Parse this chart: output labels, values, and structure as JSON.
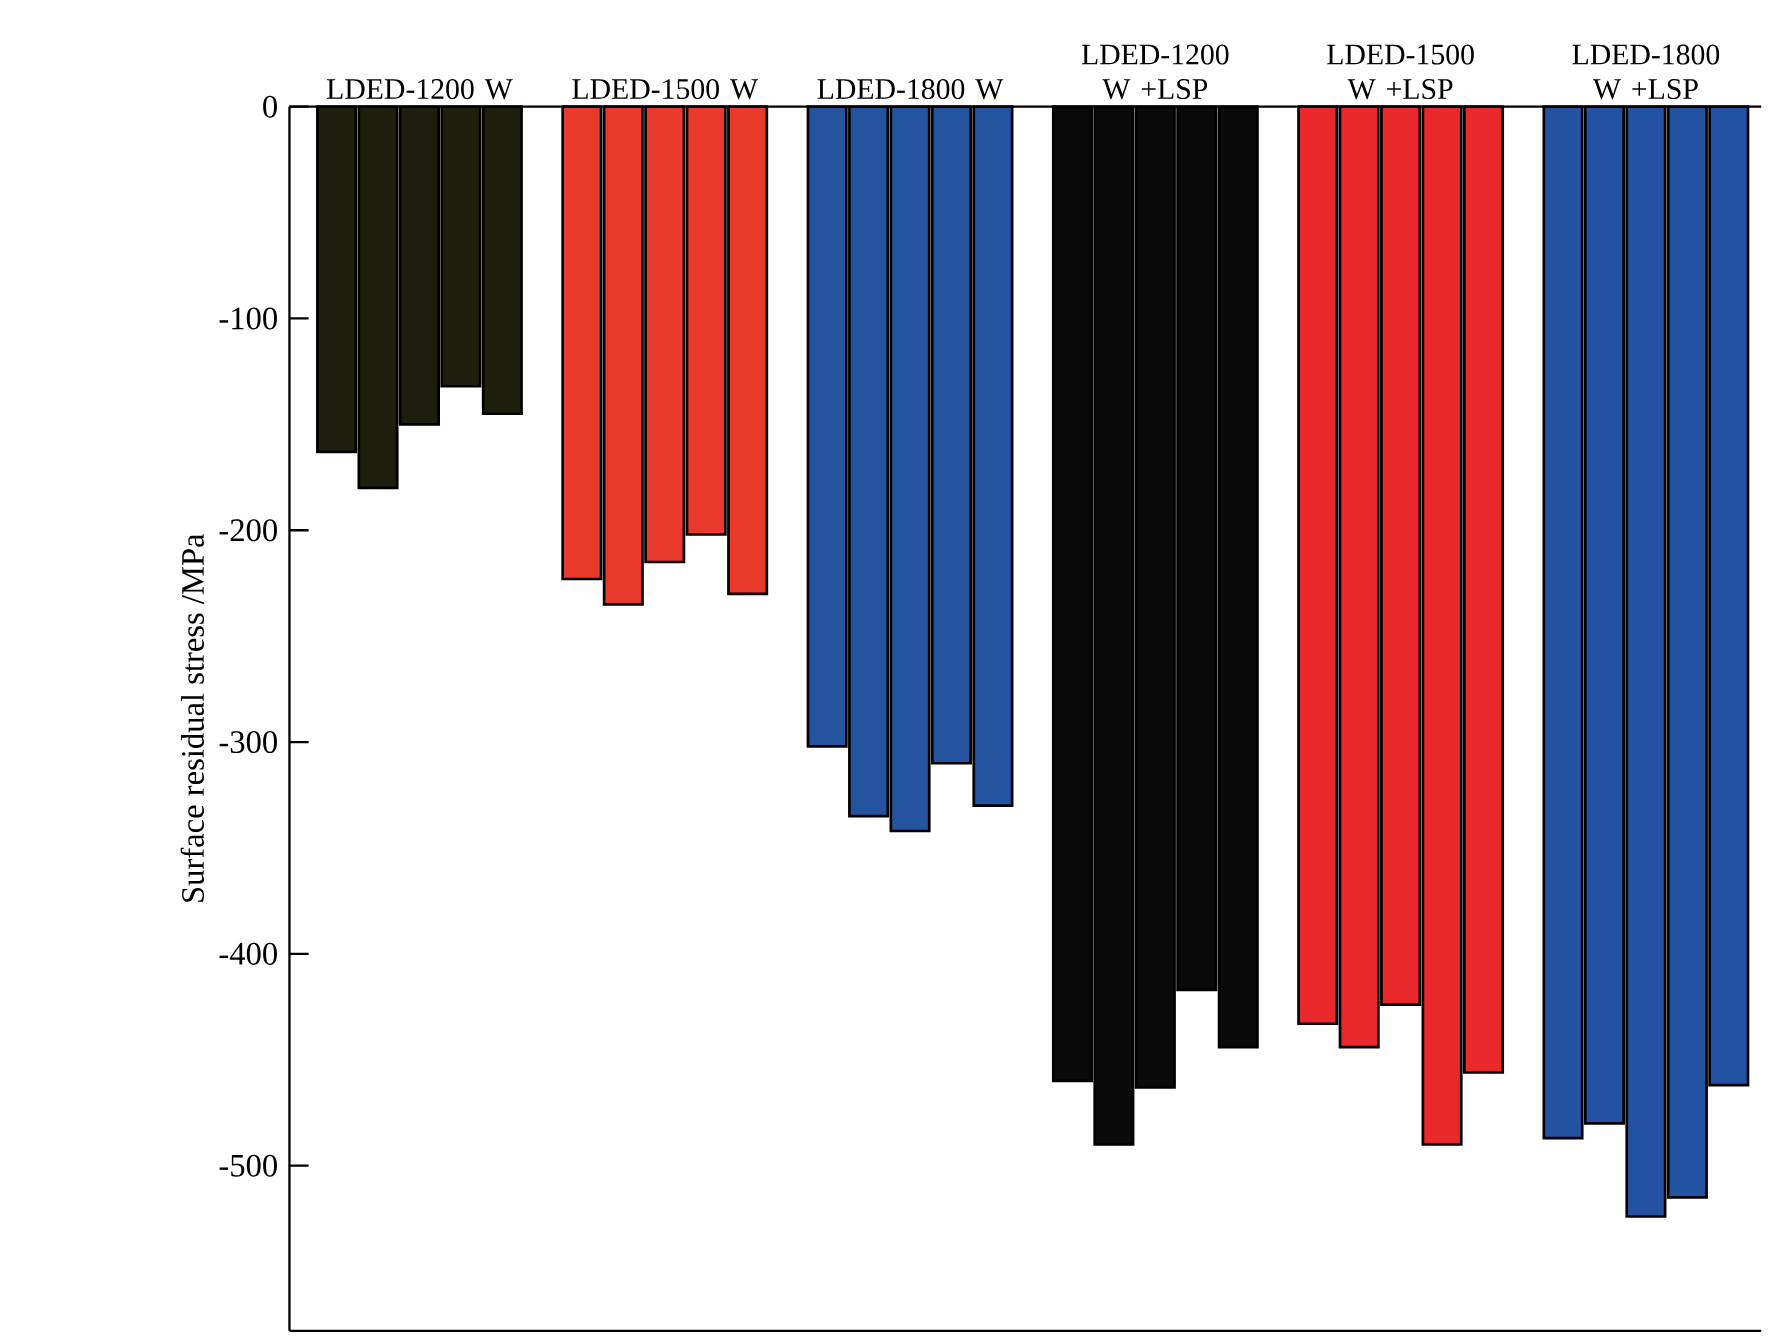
{
  "chart_data": {
    "type": "bar",
    "ylabel": "Surface residual stress /MPa",
    "categories": [
      "LDED-1200 W",
      "LDED-1500 W",
      "LDED-1800 W",
      "LDED-1200 W +LSP",
      "LDED-1500 W +LSP",
      "LDED-1800 W +LSP"
    ],
    "series": [
      {
        "colors": [
          "#1e1e0c",
          "#e8392a",
          "#2453a0",
          "#0a0a0a",
          "#e8282a",
          "#2452a3"
        ],
        "values": [
          -163,
          -223,
          -302,
          -460,
          -433,
          -487
        ]
      },
      {
        "colors": [
          "#1e1e0c",
          "#e8392a",
          "#2453a0",
          "#0a0a0a",
          "#e8282a",
          "#2452a3"
        ],
        "values": [
          -180,
          -235,
          -335,
          -490,
          -444,
          -480
        ]
      },
      {
        "colors": [
          "#1e1e0c",
          "#e8392a",
          "#2453a0",
          "#0a0a0a",
          "#e8282a",
          "#2452a3"
        ],
        "values": [
          -150,
          -215,
          -342,
          -463,
          -424,
          -524
        ]
      },
      {
        "colors": [
          "#1e1e0c",
          "#e8392a",
          "#2453a0",
          "#0a0a0a",
          "#e8282a",
          "#2452a3"
        ],
        "values": [
          -132,
          -202,
          -310,
          -417,
          -490,
          -515
        ]
      },
      {
        "colors": [
          "#1e1e0c",
          "#e8392a",
          "#2453a0",
          "#0a0a0a",
          "#e8282a",
          "#2452a3"
        ],
        "values": [
          -145,
          -230,
          -330,
          -444,
          -456,
          -462
        ]
      }
    ],
    "ylim": [
      -578,
      0
    ],
    "yticks": [
      0,
      -100,
      -200,
      -300,
      -400,
      -500
    ]
  }
}
